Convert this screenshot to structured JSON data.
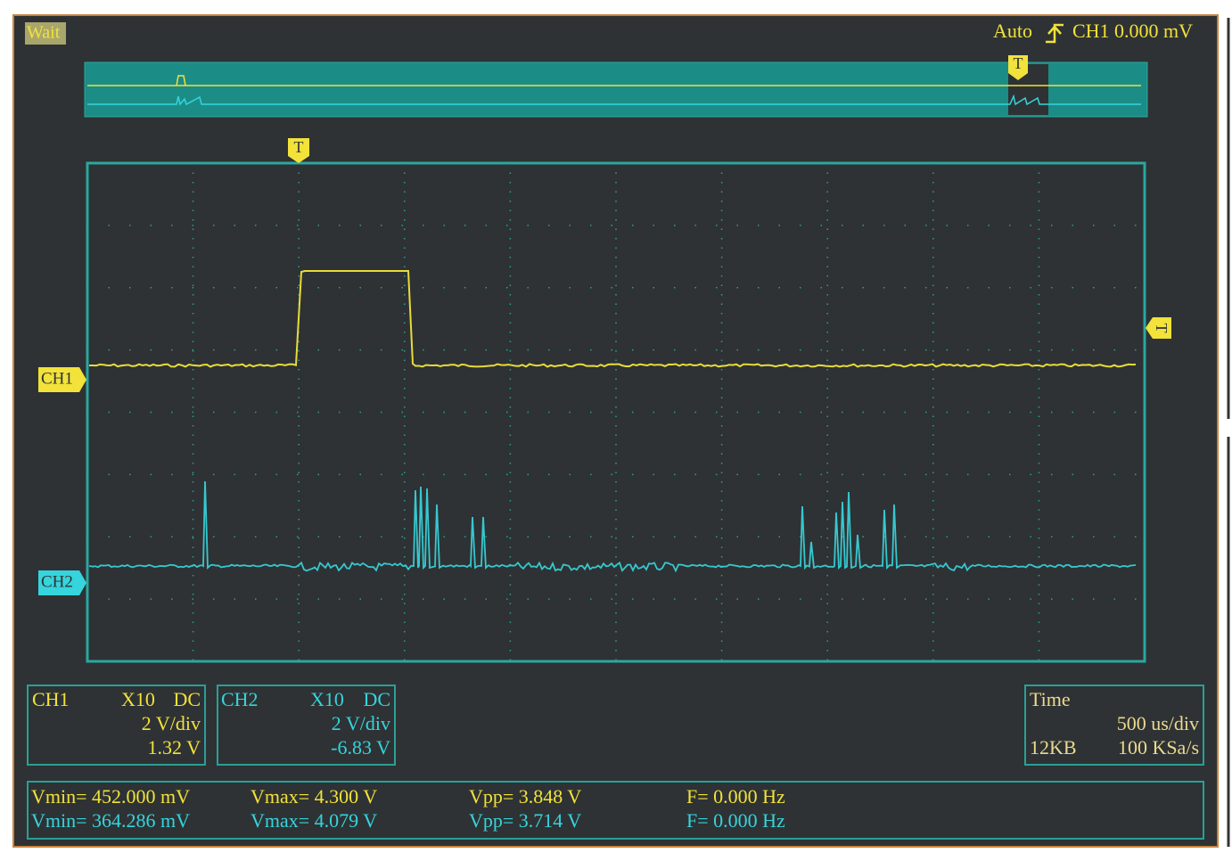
{
  "status": "Wait",
  "trigger": {
    "mode": "Auto",
    "source_level": "CH1 0.000 mV"
  },
  "markers": {
    "overview_trigger": "T",
    "trigger_position": "T",
    "trigger_level": "T",
    "ch1": "CH1",
    "ch2": "CH2"
  },
  "ch1_panel": {
    "name": "CH1",
    "probe": "X10",
    "coupling": "DC",
    "scale": "2 V/div",
    "offset": "1.32 V"
  },
  "ch2_panel": {
    "name": "CH2",
    "probe": "X10",
    "coupling": "DC",
    "scale": "2 V/div",
    "offset": "-6.83 V"
  },
  "time_panel": {
    "title": "Time",
    "scale": "500 us/div",
    "memory": "12KB",
    "rate": "100 KSa/s"
  },
  "measurements": [
    [
      "Vmin= 452.000 mV",
      "Vmax= 4.300 V",
      "Vpp= 3.848 V",
      "F= 0.000 Hz"
    ],
    [
      "Vmin= 364.286 mV",
      "Vmax= 4.079 V",
      "Vpp= 3.714 V",
      "F= 0.000 Hz"
    ]
  ]
}
